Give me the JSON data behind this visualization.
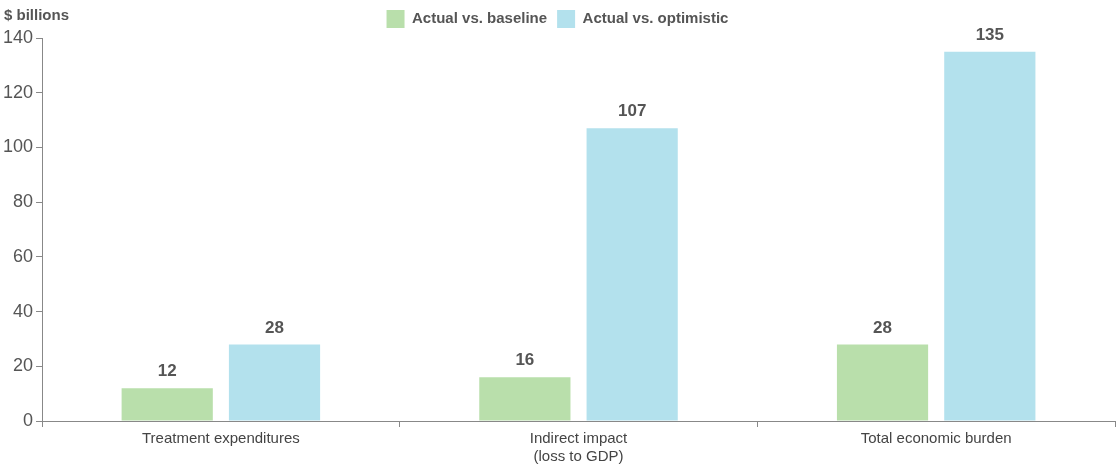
{
  "chart_data": {
    "type": "bar",
    "ylabel": "$ billions",
    "categories": [
      "Treatment expenditures",
      "Indirect impact\n(loss to GDP)",
      "Total economic burden"
    ],
    "series": [
      {
        "name": "Actual vs. baseline",
        "color": "#b9dfab",
        "values": [
          12,
          16,
          28
        ]
      },
      {
        "name": "Actual vs. optimistic",
        "color": "#b3e1ed",
        "values": [
          28,
          107,
          135
        ]
      }
    ],
    "ylim": [
      0,
      140
    ],
    "yticks": [
      0,
      20,
      40,
      60,
      80,
      100,
      120,
      140
    ],
    "grid": false,
    "legend": "top",
    "data_labels": true
  }
}
